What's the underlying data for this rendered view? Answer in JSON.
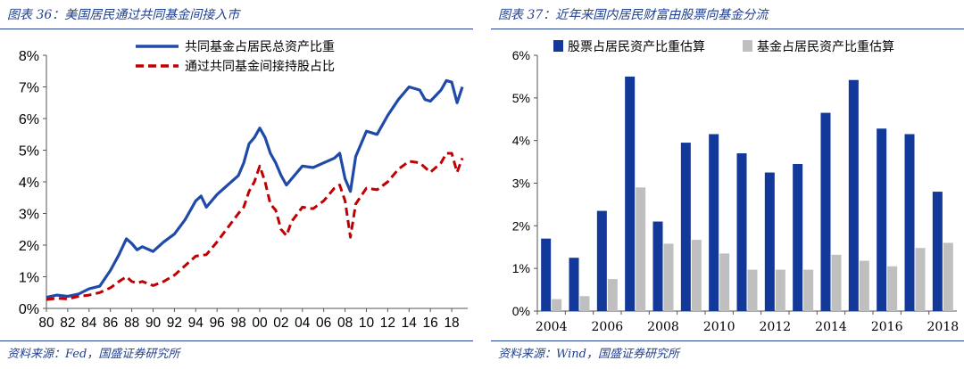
{
  "left": {
    "title": "图表 36：美国居民通过共同基金间接入市",
    "source": "资料来源：Fed，国盛证券研究所"
  },
  "right": {
    "title": "图表 37：近年来国内居民财富由股票向基金分流",
    "source": "资料来源：Wind，国盛证券研究所"
  },
  "colors": {
    "accent": "#1f3f8f",
    "blue_line": "#1f4aa8",
    "red_line": "#c00000",
    "blue_bar": "#12389a",
    "gray_bar": "#bfbfbf"
  },
  "chart_data": [
    {
      "type": "line",
      "title": "",
      "xlabel": "",
      "ylabel": "",
      "x_ticks": [
        "80",
        "82",
        "84",
        "86",
        "88",
        "90",
        "92",
        "94",
        "96",
        "98",
        "00",
        "02",
        "04",
        "06",
        "08",
        "10",
        "12",
        "14",
        "16",
        "18"
      ],
      "y_ticks": [
        "0%",
        "1%",
        "2%",
        "3%",
        "4%",
        "5%",
        "6%",
        "7%",
        "8%"
      ],
      "xlim": [
        1980,
        2019.5
      ],
      "ylim": [
        0,
        8
      ],
      "legend_position": "top",
      "series": [
        {
          "name": "共同基金占居民总资产比重",
          "color": "#1f4aa8",
          "style": "solid",
          "points": [
            [
              1980,
              0.35
            ],
            [
              1981,
              0.42
            ],
            [
              1982,
              0.38
            ],
            [
              1983,
              0.45
            ],
            [
              1984,
              0.62
            ],
            [
              1985,
              0.7
            ],
            [
              1986,
              1.2
            ],
            [
              1986.8,
              1.7
            ],
            [
              1987.5,
              2.2
            ],
            [
              1988,
              2.05
            ],
            [
              1988.5,
              1.85
            ],
            [
              1989,
              1.95
            ],
            [
              1990,
              1.8
            ],
            [
              1991,
              2.1
            ],
            [
              1992,
              2.35
            ],
            [
              1993,
              2.8
            ],
            [
              1994,
              3.4
            ],
            [
              1994.5,
              3.55
            ],
            [
              1995,
              3.2
            ],
            [
              1996,
              3.6
            ],
            [
              1997,
              3.9
            ],
            [
              1998,
              4.2
            ],
            [
              1998.5,
              4.6
            ],
            [
              1999,
              5.2
            ],
            [
              1999.5,
              5.4
            ],
            [
              2000,
              5.7
            ],
            [
              2000.5,
              5.4
            ],
            [
              2001,
              4.9
            ],
            [
              2001.5,
              4.6
            ],
            [
              2002,
              4.2
            ],
            [
              2002.5,
              3.9
            ],
            [
              2003,
              4.1
            ],
            [
              2004,
              4.5
            ],
            [
              2005,
              4.45
            ],
            [
              2006,
              4.6
            ],
            [
              2007,
              4.75
            ],
            [
              2007.5,
              4.9
            ],
            [
              2008,
              4.1
            ],
            [
              2008.5,
              3.7
            ],
            [
              2009,
              4.8
            ],
            [
              2010,
              5.6
            ],
            [
              2011,
              5.5
            ],
            [
              2012,
              6.1
            ],
            [
              2013,
              6.6
            ],
            [
              2014,
              7.0
            ],
            [
              2015,
              6.9
            ],
            [
              2015.5,
              6.6
            ],
            [
              2016,
              6.55
            ],
            [
              2017,
              6.9
            ],
            [
              2017.5,
              7.2
            ],
            [
              2018,
              7.15
            ],
            [
              2018.5,
              6.5
            ],
            [
              2019,
              7.0
            ]
          ]
        },
        {
          "name": "通过共同基金间接持股占比",
          "color": "#c00000",
          "style": "dashed",
          "points": [
            [
              1980,
              0.28
            ],
            [
              1981,
              0.32
            ],
            [
              1982,
              0.3
            ],
            [
              1983,
              0.38
            ],
            [
              1984,
              0.42
            ],
            [
              1985,
              0.5
            ],
            [
              1986,
              0.65
            ],
            [
              1986.8,
              0.85
            ],
            [
              1987.5,
              1.0
            ],
            [
              1988,
              0.85
            ],
            [
              1988.5,
              0.8
            ],
            [
              1989,
              0.85
            ],
            [
              1990,
              0.72
            ],
            [
              1991,
              0.85
            ],
            [
              1992,
              1.05
            ],
            [
              1993,
              1.35
            ],
            [
              1994,
              1.65
            ],
            [
              1995,
              1.7
            ],
            [
              1996,
              2.1
            ],
            [
              1997,
              2.55
            ],
            [
              1998,
              3.0
            ],
            [
              1998.5,
              3.2
            ],
            [
              1999,
              3.7
            ],
            [
              1999.5,
              4.0
            ],
            [
              2000,
              4.5
            ],
            [
              2000.5,
              4.0
            ],
            [
              2001,
              3.3
            ],
            [
              2001.5,
              3.1
            ],
            [
              2002,
              2.5
            ],
            [
              2002.5,
              2.3
            ],
            [
              2003,
              2.75
            ],
            [
              2004,
              3.2
            ],
            [
              2005,
              3.15
            ],
            [
              2006,
              3.4
            ],
            [
              2007,
              3.8
            ],
            [
              2007.5,
              3.9
            ],
            [
              2008,
              3.4
            ],
            [
              2008.5,
              2.25
            ],
            [
              2009,
              3.3
            ],
            [
              2010,
              3.8
            ],
            [
              2011,
              3.75
            ],
            [
              2012,
              4.0
            ],
            [
              2013,
              4.4
            ],
            [
              2014,
              4.65
            ],
            [
              2015,
              4.6
            ],
            [
              2016,
              4.3
            ],
            [
              2017,
              4.6
            ],
            [
              2017.5,
              4.9
            ],
            [
              2018,
              4.9
            ],
            [
              2018.5,
              4.3
            ],
            [
              2019,
              4.75
            ]
          ]
        }
      ]
    },
    {
      "type": "bar",
      "title": "",
      "xlabel": "",
      "ylabel": "",
      "categories": [
        "2004",
        "2005",
        "2006",
        "2007",
        "2008",
        "2009",
        "2010",
        "2011",
        "2012",
        "2013",
        "2014",
        "2015",
        "2016",
        "2017",
        "2018"
      ],
      "x_tick_labels": [
        "2004",
        "",
        "2006",
        "",
        "2008",
        "",
        "2010",
        "",
        "2012",
        "",
        "2014",
        "",
        "2016",
        "",
        "2018"
      ],
      "y_ticks": [
        "0%",
        "1%",
        "2%",
        "3%",
        "4%",
        "5%",
        "6%"
      ],
      "ylim": [
        0,
        6
      ],
      "legend_position": "top",
      "series": [
        {
          "name": "股票占居民资产比重估算",
          "color": "#12389a",
          "values": [
            1.7,
            1.25,
            2.35,
            5.5,
            2.1,
            3.95,
            4.15,
            3.7,
            3.25,
            3.45,
            4.65,
            5.42,
            4.28,
            4.15,
            2.8
          ]
        },
        {
          "name": "基金占居民资产比重估算",
          "color": "#bfbfbf",
          "values": [
            0.28,
            0.35,
            0.75,
            2.9,
            1.58,
            1.67,
            1.35,
            0.97,
            0.97,
            0.97,
            1.32,
            1.18,
            1.05,
            1.48,
            1.6
          ]
        }
      ]
    }
  ]
}
